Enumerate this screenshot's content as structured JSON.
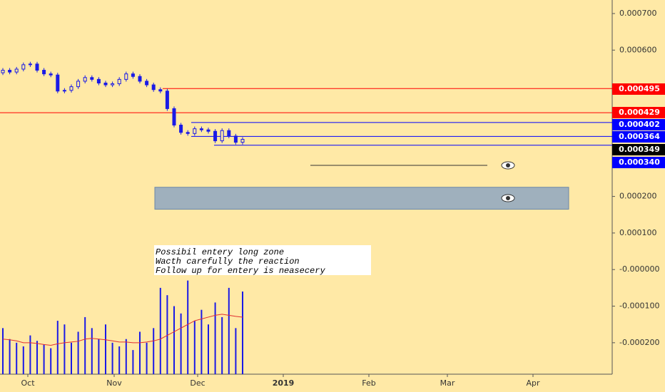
{
  "chart_data": {
    "type": "candlestick",
    "x_labels": [
      "Oct",
      "Nov",
      "Dec",
      "2019",
      "Feb",
      "Mar",
      "Apr"
    ],
    "open": [
      0.000538,
      0.000545,
      0.00054,
      0.000548,
      0.00056,
      0.000562,
      0.000545,
      0.000535,
      0.000532,
      0.000488,
      0.00049,
      0.0005,
      0.000515,
      0.000525,
      0.00052,
      0.00051,
      0.000505,
      0.000508,
      0.00052,
      0.000535,
      0.000528,
      0.000515,
      0.000505,
      0.000492,
      0.000488,
      0.00044,
      0.000395,
      0.000375,
      0.000372,
      0.000385,
      0.000382,
      0.000378,
      0.000352,
      0.00038,
      0.000365,
      0.000348
    ],
    "high": [
      0.000551,
      0.000551,
      0.000554,
      0.000566,
      0.000568,
      0.000568,
      0.000551,
      0.000541,
      0.000538,
      0.000496,
      0.000506,
      0.000521,
      0.000531,
      0.000531,
      0.000526,
      0.000516,
      0.000514,
      0.000526,
      0.000541,
      0.000541,
      0.000534,
      0.000521,
      0.000511,
      0.000498,
      0.000494,
      0.000446,
      0.000401,
      0.000381,
      0.000391,
      0.000391,
      0.000388,
      0.000384,
      0.000386,
      0.000386,
      0.000371,
      0.000362
    ],
    "low": [
      0.000532,
      0.000534,
      0.000534,
      0.000542,
      0.000554,
      0.000539,
      0.000529,
      0.000526,
      0.000482,
      0.000482,
      0.000484,
      0.000494,
      0.000509,
      0.000514,
      0.000504,
      0.000499,
      0.000499,
      0.000502,
      0.000514,
      0.000522,
      0.000509,
      0.000499,
      0.000486,
      0.000482,
      0.000434,
      0.000389,
      0.000369,
      0.000366,
      0.000366,
      0.000376,
      0.000372,
      0.000346,
      0.000346,
      0.000359,
      0.000342,
      0.000342
    ],
    "close": [
      0.000545,
      0.00054,
      0.000548,
      0.00056,
      0.000562,
      0.000545,
      0.000535,
      0.000532,
      0.000488,
      0.00049,
      0.0005,
      0.000515,
      0.000525,
      0.00052,
      0.00051,
      0.000505,
      0.000508,
      0.00052,
      0.000535,
      0.000528,
      0.000515,
      0.000505,
      0.000492,
      0.000488,
      0.00044,
      0.000395,
      0.000375,
      0.000372,
      0.000385,
      0.000382,
      0.000378,
      0.000352,
      0.00038,
      0.000365,
      0.000348,
      0.000356
    ],
    "color": "#1a1ae6",
    "volume": [
      -0.00016,
      -0.00019,
      -0.0002,
      -0.00021,
      -0.00018,
      -0.000195,
      -0.000205,
      -0.000215,
      -0.00014,
      -0.00015,
      -0.0002,
      -0.00017,
      -0.00013,
      -0.00016,
      -0.00019,
      -0.00015,
      -0.0002,
      -0.00021,
      -0.00019,
      -0.00022,
      -0.00017,
      -0.0002,
      -0.00016,
      -5e-05,
      -7e-05,
      -0.0001,
      -0.00012,
      -3e-05,
      -0.00014,
      -0.00011,
      -0.00015,
      -9e-05,
      -0.00013,
      -5e-05,
      -0.00016,
      -6e-05
    ],
    "volume_ma": [
      -0.00019,
      -0.000192,
      -0.000195,
      -0.0002,
      -0.0002,
      -0.000202,
      -0.000205,
      -0.000207,
      -0.000203,
      -0.0002,
      -0.000198,
      -0.000196,
      -0.00019,
      -0.000188,
      -0.00019,
      -0.000192,
      -0.000195,
      -0.000198,
      -0.000198,
      -0.0002,
      -0.0002,
      -0.000198,
      -0.000195,
      -0.00019,
      -0.00018,
      -0.00017,
      -0.00016,
      -0.00015,
      -0.00014,
      -0.000135,
      -0.00013,
      -0.000125,
      -0.000122,
      -0.000125,
      -0.000128,
      -0.00013
    ],
    "volume_ma_color": "#e03030",
    "ylim": [
      -0.000286,
      0.000737
    ],
    "yticks": [
      {
        "value": 0.0007,
        "label": "0.000700"
      },
      {
        "value": 0.0006,
        "label": "0.000600"
      },
      {
        "value": 0.0002,
        "label": "0.000200"
      },
      {
        "value": 0.0001,
        "label": "0.000100"
      },
      {
        "value": 0,
        "label": "-0.000000"
      },
      {
        "value": -0.0001,
        "label": "-0.000100"
      },
      {
        "value": -0.0002,
        "label": "-0.000200"
      }
    ],
    "levels": [
      {
        "value": 0.000495,
        "label": "0.000495",
        "color": "#ff0000"
      },
      {
        "value": 0.000429,
        "label": "0.000429",
        "color": "#ff0000"
      },
      {
        "value": 0.000402,
        "label": "0.000402",
        "color": "#0000ff"
      },
      {
        "value": 0.000364,
        "label": "0.000364",
        "color": "#0000ff"
      },
      {
        "value": 0.000349,
        "label": "0.000349",
        "color": "#000000"
      },
      {
        "value": 0.00034,
        "label": "0.000340",
        "color": "#0000ff"
      }
    ],
    "trend_line": 0.000285,
    "zone": [
      0.000165,
      0.000225
    ],
    "note": [
      "Possibil entery long zone",
      "Wacth carefully the reaction",
      "Follow up for entery is neasecery"
    ]
  }
}
